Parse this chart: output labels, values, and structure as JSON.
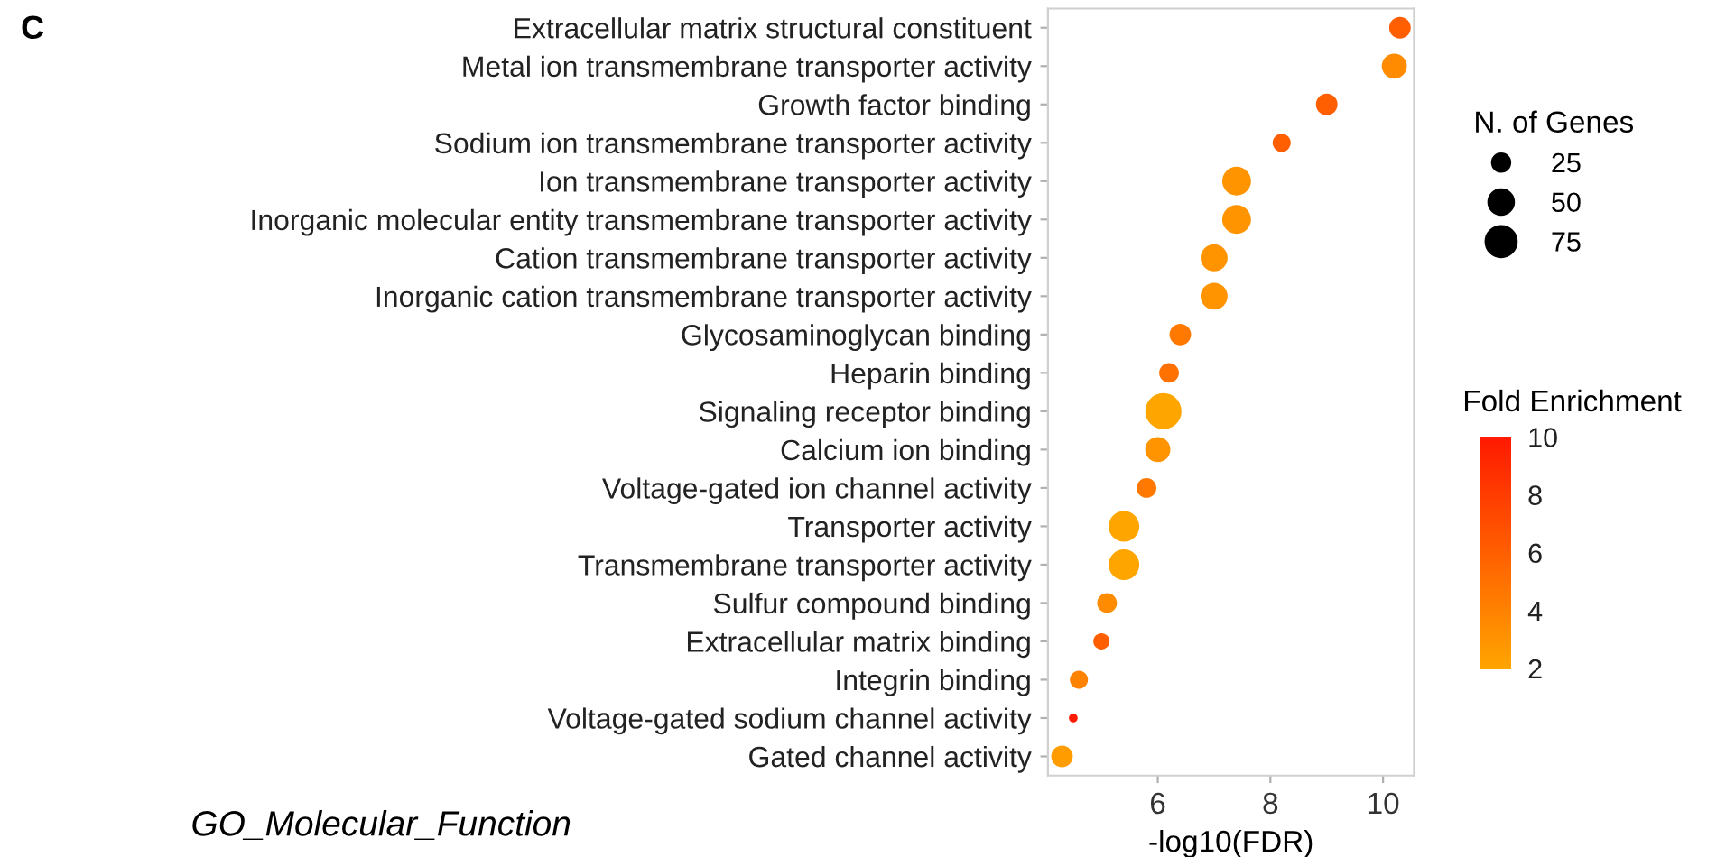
{
  "chart_data": {
    "type": "bubble",
    "orientation": "horizontal",
    "title": "C",
    "xlabel": "-log10(FDR)",
    "legend_title": "N. of Genes",
    "clabel": "Fold Enrichment",
    "annotations": [
      "GO_Molecular_Function"
    ],
    "categories": [
      "Extracellular matrix structural constituent",
      "Metal ion transmembrane transporter activity",
      "Growth factor binding",
      "Sodium ion transmembrane transporter activity",
      "Ion transmembrane transporter activity",
      "Inorganic molecular entity transmembrane transporter activity",
      "Cation transmembrane transporter activity",
      "Inorganic cation transmembrane transporter activity",
      "Glycosaminoglycan binding",
      "Heparin binding",
      "Signaling receptor binding",
      "Calcium ion binding",
      "Voltage-gated ion channel activity",
      "Transporter activity",
      "Transmembrane transporter activity",
      "Sulfur compound binding",
      "Extracellular matrix binding",
      "Integrin binding",
      "Voltage-gated sodium channel activity",
      "Gated channel activity"
    ],
    "values": [
      10.3,
      10.2,
      9.0,
      8.2,
      7.4,
      7.4,
      7.0,
      7.0,
      6.4,
      6.2,
      6.1,
      6.0,
      5.8,
      5.4,
      5.4,
      5.1,
      5.0,
      4.6,
      4.5,
      4.3
    ],
    "sizes": [
      37,
      50,
      37,
      26,
      66,
      66,
      58,
      58,
      37,
      31,
      104,
      50,
      31,
      75,
      75,
      31,
      21,
      26,
      6,
      37
    ],
    "size_legend": [
      25,
      50,
      75
    ],
    "cvalues": [
      6,
      3.5,
      6,
      6,
      3,
      3,
      3,
      3,
      4.5,
      5,
      2,
      3,
      4.5,
      2,
      2,
      3.5,
      6,
      4,
      10,
      2.5
    ],
    "clim": [
      2,
      10
    ],
    "cticks": [
      2,
      4,
      6,
      8,
      10
    ],
    "xlim": [
      4.05,
      10.55
    ],
    "xticks": [
      6,
      8,
      10
    ],
    "grid": false
  }
}
